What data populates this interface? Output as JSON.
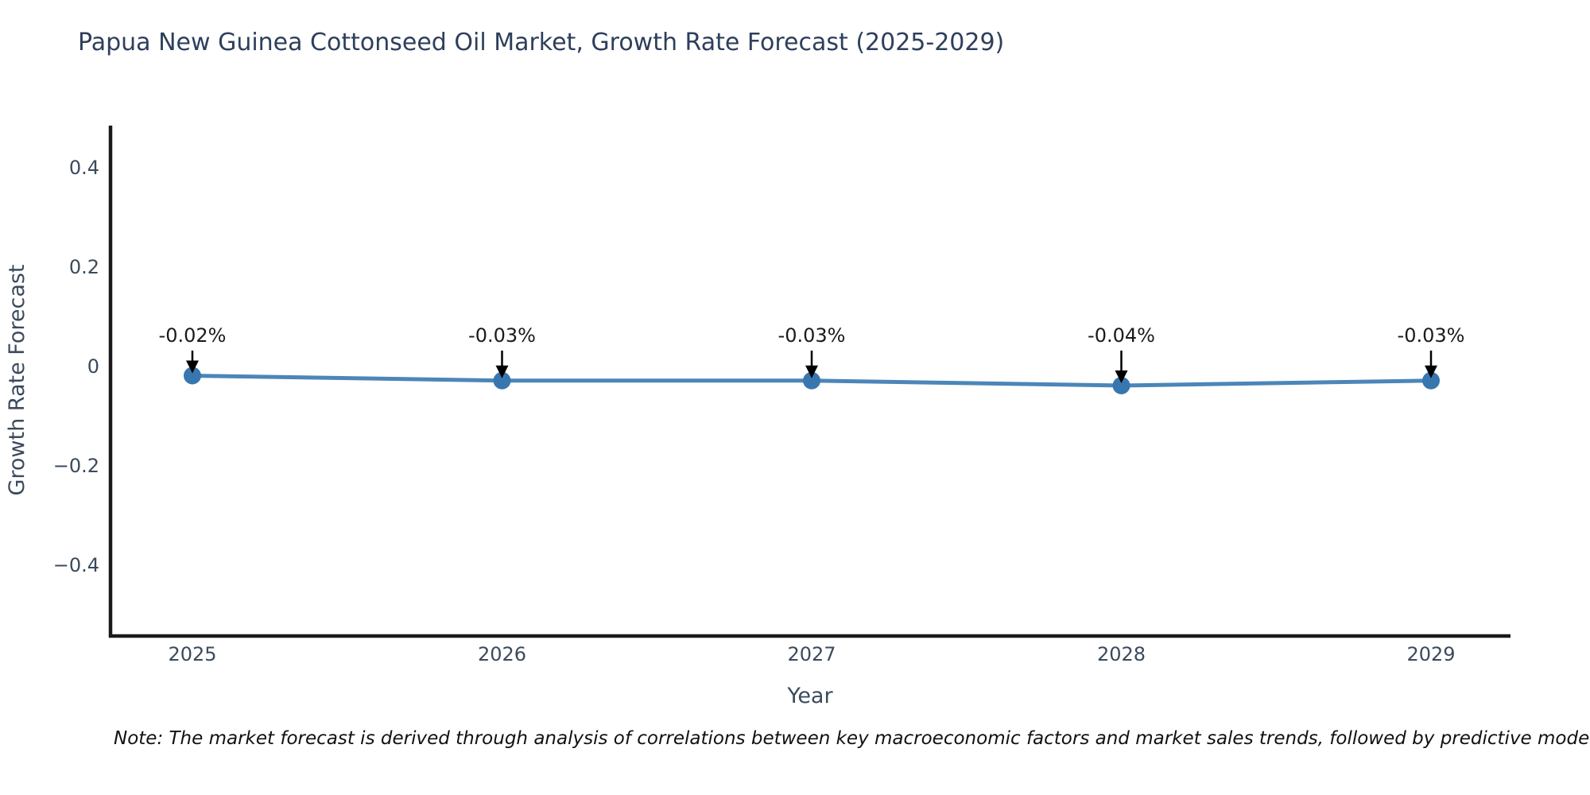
{
  "title": "Papua New Guinea Cottonseed Oil Market, Growth Rate Forecast (2025-2029)",
  "note": "Note: The market forecast is derived through analysis of correlations between key macroeconomic factors and market sales trends, followed by predictive modeling to project future sales.",
  "chart_data": {
    "type": "line",
    "title": "Papua New Guinea Cottonseed Oil Market, Growth Rate Forecast (2025-2029)",
    "xlabel": "Year",
    "ylabel": "Growth Rate Forecast",
    "x": [
      2025,
      2026,
      2027,
      2028,
      2029
    ],
    "values": [
      -0.02,
      -0.03,
      -0.03,
      -0.04,
      -0.03
    ],
    "point_labels": [
      "-0.02%",
      "-0.03%",
      "-0.03%",
      "-0.04%",
      "-0.03%"
    ],
    "xtick_labels": [
      "2025",
      "2026",
      "2027",
      "2028",
      "2029"
    ],
    "yticks": [
      0.4,
      0.2,
      0,
      -0.2,
      -0.4
    ],
    "ytick_labels": [
      "0.4",
      "0.2",
      "0",
      "−0.2",
      "−0.4"
    ],
    "ylim": [
      -0.52,
      0.48
    ],
    "grid": false,
    "legend": "none",
    "line_color": "#4c86b8",
    "marker_color": "#3876b0",
    "axis_color": "#1a1a1a",
    "tick_color": "#3b4a5c",
    "annotation_color": "#1a1a1a",
    "arrow_color": "#000000"
  }
}
